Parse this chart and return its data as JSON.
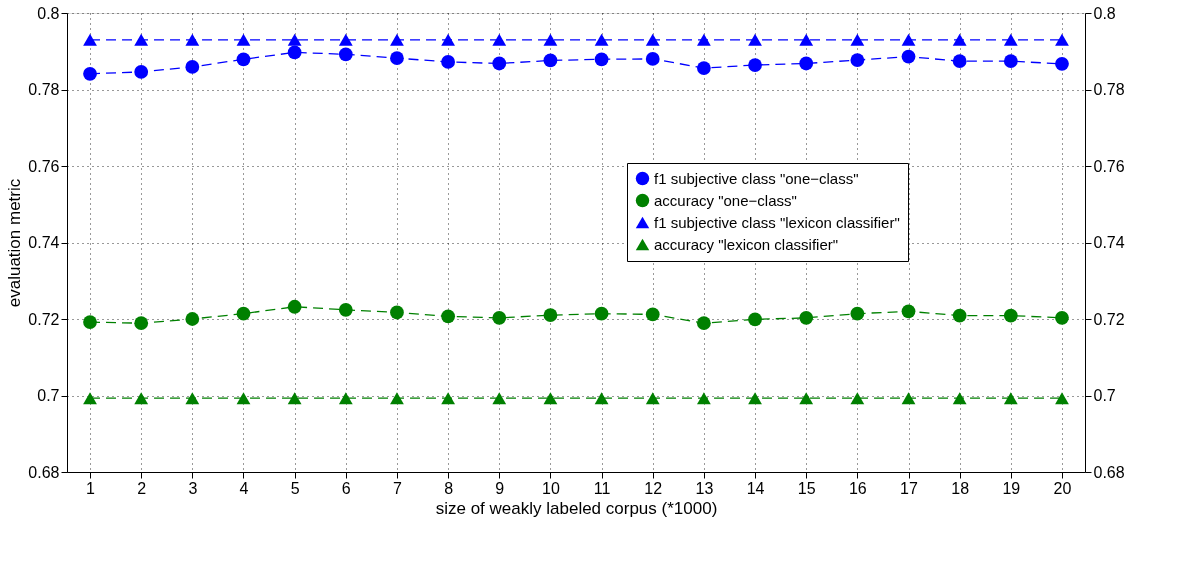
{
  "chart_data": {
    "type": "line",
    "xlabel": "size of weakly labeled corpus (*1000)",
    "ylabel": "evaluation metric",
    "x": [
      1,
      2,
      3,
      4,
      5,
      6,
      7,
      8,
      9,
      10,
      11,
      12,
      13,
      14,
      15,
      16,
      17,
      18,
      19,
      20
    ],
    "series": [
      {
        "name": "f1 subjective class \"one−class\"",
        "color": "#0000ff",
        "marker": "circle",
        "values": [
          0.7841,
          0.7846,
          0.7859,
          0.7879,
          0.7897,
          0.7892,
          0.7882,
          0.7872,
          0.7868,
          0.7876,
          0.7879,
          0.788,
          0.7856,
          0.7864,
          0.7868,
          0.7877,
          0.7886,
          0.7874,
          0.7874,
          0.7867
        ]
      },
      {
        "name": "accuracy \"one−class\"",
        "color": "#008000",
        "marker": "circle",
        "values": [
          0.7192,
          0.7189,
          0.72,
          0.7214,
          0.7232,
          0.7224,
          0.7217,
          0.7207,
          0.7203,
          0.721,
          0.7214,
          0.7212,
          0.7189,
          0.7199,
          0.7203,
          0.7214,
          0.722,
          0.7209,
          0.7209,
          0.7203
        ]
      },
      {
        "name": "f1 subjective class \"lexicon classifier\"",
        "color": "#0000ff",
        "marker": "triangle",
        "values": [
          0.793,
          0.793,
          0.793,
          0.793,
          0.793,
          0.793,
          0.793,
          0.793,
          0.793,
          0.793,
          0.793,
          0.793,
          0.793,
          0.793,
          0.793,
          0.793,
          0.793,
          0.793,
          0.793,
          0.793
        ]
      },
      {
        "name": "accuracy \"lexicon classifier\"",
        "color": "#008000",
        "marker": "triangle",
        "values": [
          0.6993,
          0.6993,
          0.6993,
          0.6993,
          0.6993,
          0.6993,
          0.6993,
          0.6993,
          0.6993,
          0.6993,
          0.6993,
          0.6993,
          0.6993,
          0.6993,
          0.6993,
          0.6993,
          0.6993,
          0.6993,
          0.6993,
          0.6993
        ]
      }
    ],
    "xlim": [
      0.55,
      20.45
    ],
    "xticks": [
      1,
      2,
      3,
      4,
      5,
      6,
      7,
      8,
      9,
      10,
      11,
      12,
      13,
      14,
      15,
      16,
      17,
      18,
      19,
      20
    ],
    "ylim": [
      0.68,
      0.8
    ],
    "yticks": [
      0.68,
      0.7,
      0.72,
      0.74,
      0.76,
      0.78,
      0.8
    ],
    "y2lim": [
      0.68,
      0.8
    ],
    "y2ticks": [
      0.68,
      0.7,
      0.72,
      0.74,
      0.76,
      0.78,
      0.8
    ],
    "grid": true,
    "legend": "right",
    "line_style": "dashed"
  }
}
